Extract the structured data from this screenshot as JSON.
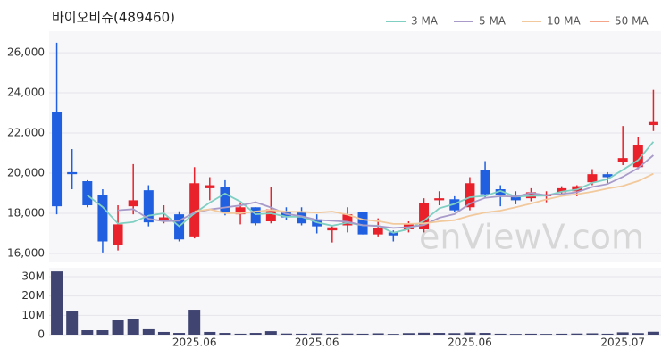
{
  "chart_data": {
    "type": "candlestick",
    "title": "바이오비쥬(489460)",
    "watermark": "enViewV.com",
    "categories": [
      null,
      null,
      null,
      null,
      null,
      null,
      null,
      null,
      null,
      "2025.06",
      null,
      null,
      null,
      null,
      null,
      null,
      null,
      "2025.06",
      null,
      null,
      null,
      null,
      null,
      null,
      null,
      null,
      null,
      "2025.06",
      null,
      null,
      null,
      null,
      null,
      null,
      null,
      null,
      null,
      "2025.07",
      null,
      null
    ],
    "open": [
      23050,
      20050,
      19600,
      18900,
      16400,
      18350,
      19150,
      17600,
      17950,
      16850,
      19250,
      19300,
      17950,
      18300,
      17600,
      18100,
      18050,
      17700,
      17150,
      17400,
      18050,
      16950,
      17050,
      17200,
      17200,
      18650,
      18700,
      18300,
      20150,
      19200,
      18900,
      18750,
      18850,
      19050,
      19100,
      19550,
      19950,
      20550,
      20300,
      22400
    ],
    "high": [
      26500,
      21200,
      19650,
      19200,
      18400,
      20450,
      19400,
      18400,
      18100,
      20300,
      19800,
      19650,
      18500,
      18300,
      19300,
      18300,
      18300,
      17950,
      17350,
      18300,
      18050,
      17750,
      17150,
      17600,
      18750,
      19100,
      18850,
      19800,
      20600,
      19400,
      19100,
      19250,
      19100,
      19350,
      19400,
      20200,
      20050,
      22350,
      21800,
      24150
    ],
    "low": [
      17950,
      19200,
      18300,
      16050,
      16150,
      17950,
      17350,
      17500,
      16600,
      16750,
      18650,
      17900,
      17450,
      17400,
      17500,
      17650,
      17400,
      17000,
      16550,
      17050,
      16950,
      16850,
      16600,
      17050,
      17050,
      18400,
      18050,
      18150,
      18800,
      18350,
      18450,
      18600,
      18550,
      18900,
      18850,
      19400,
      19500,
      20400,
      20200,
      22100
    ],
    "close": [
      18350,
      19950,
      18400,
      16600,
      17450,
      18650,
      17550,
      17800,
      16700,
      19500,
      19400,
      18050,
      18300,
      17500,
      18200,
      17800,
      17500,
      17350,
      17300,
      17950,
      16950,
      17250,
      16900,
      17500,
      18500,
      18750,
      18150,
      19500,
      18950,
      18900,
      18650,
      19050,
      18950,
      19250,
      19350,
      19950,
      19800,
      20750,
      21400,
      22550
    ],
    "up_color": "#e8212b",
    "down_color": "#1f5fe0",
    "series": [
      {
        "name": "3 MA",
        "color": "#7fcfc2",
        "values": [
          null,
          null,
          18900,
          18317,
          17483,
          17567,
          17883,
          18000,
          17350,
          18000,
          18533,
          18983,
          18583,
          17950,
          18000,
          17833,
          17833,
          17550,
          17383,
          17533,
          17400,
          17383,
          17033,
          17217,
          17633,
          18250,
          18467,
          18800,
          18867,
          19117,
          18833,
          18867,
          18883,
          19083,
          19183,
          19517,
          19700,
          20167,
          20650,
          21567
        ]
      },
      {
        "name": "5 MA",
        "color": "#a99bc9",
        "values": [
          null,
          null,
          null,
          null,
          18150,
          18210,
          17730,
          17610,
          17630,
          18040,
          18190,
          18290,
          18390,
          18550,
          18290,
          17970,
          17860,
          17670,
          17630,
          17580,
          17410,
          17360,
          17270,
          17310,
          17420,
          17780,
          17960,
          18480,
          18770,
          18850,
          18830,
          19010,
          18900,
          18960,
          19050,
          19310,
          19460,
          19820,
          20250,
          20890
        ]
      },
      {
        "name": "10 MA",
        "color": "#f2c99c",
        "values": [
          null,
          null,
          null,
          null,
          null,
          null,
          null,
          null,
          null,
          18095,
          18200,
          18010,
          18000,
          18090,
          18165,
          18080,
          18075,
          18030,
          18090,
          17935,
          17690,
          17610,
          17470,
          17470,
          17500,
          17595,
          17660,
          17875,
          18040,
          18135,
          18305,
          18485,
          18690,
          18865,
          18950,
          19070,
          19235,
          19360,
          19605,
          19970
        ]
      },
      {
        "name": "50 MA",
        "color": "#f4a58a",
        "values": [
          null,
          null,
          null,
          null,
          null,
          null,
          null,
          null,
          null,
          null,
          null,
          null,
          null,
          null,
          null,
          null,
          null,
          null,
          null,
          null,
          null,
          null,
          null,
          null,
          null,
          null,
          null,
          null,
          null,
          null,
          null,
          null,
          null,
          null,
          null,
          null,
          null,
          null,
          null,
          null
        ]
      }
    ],
    "ylim": [
      15600,
      27070
    ],
    "yticks": [
      {
        "value": 16000,
        "label": "16,000"
      },
      {
        "value": 18000,
        "label": "18,000"
      },
      {
        "value": 20000,
        "label": "20,000"
      },
      {
        "value": 22000,
        "label": "22,000"
      },
      {
        "value": 24000,
        "label": "24,000"
      },
      {
        "value": 26000,
        "label": "26,000"
      }
    ],
    "grid": true,
    "volume": {
      "color": "#3f4470",
      "values": [
        32700000,
        12400000,
        2300000,
        2300000,
        7400000,
        8300000,
        2800000,
        1400000,
        900000,
        12900000,
        1400000,
        900000,
        500000,
        900000,
        1800000,
        600000,
        500000,
        700000,
        500000,
        600000,
        500000,
        700000,
        400000,
        800000,
        1000000,
        900000,
        800000,
        1100000,
        900000,
        500000,
        400000,
        500000,
        400000,
        500000,
        600000,
        700000,
        500000,
        1200000,
        800000,
        1500000
      ],
      "ylim": [
        0,
        34600000
      ],
      "yticks": [
        {
          "value": 0,
          "label": "0"
        },
        {
          "value": 10000000,
          "label": "10M"
        },
        {
          "value": 20000000,
          "label": "20M"
        },
        {
          "value": 30000000,
          "label": "30M"
        }
      ]
    }
  }
}
